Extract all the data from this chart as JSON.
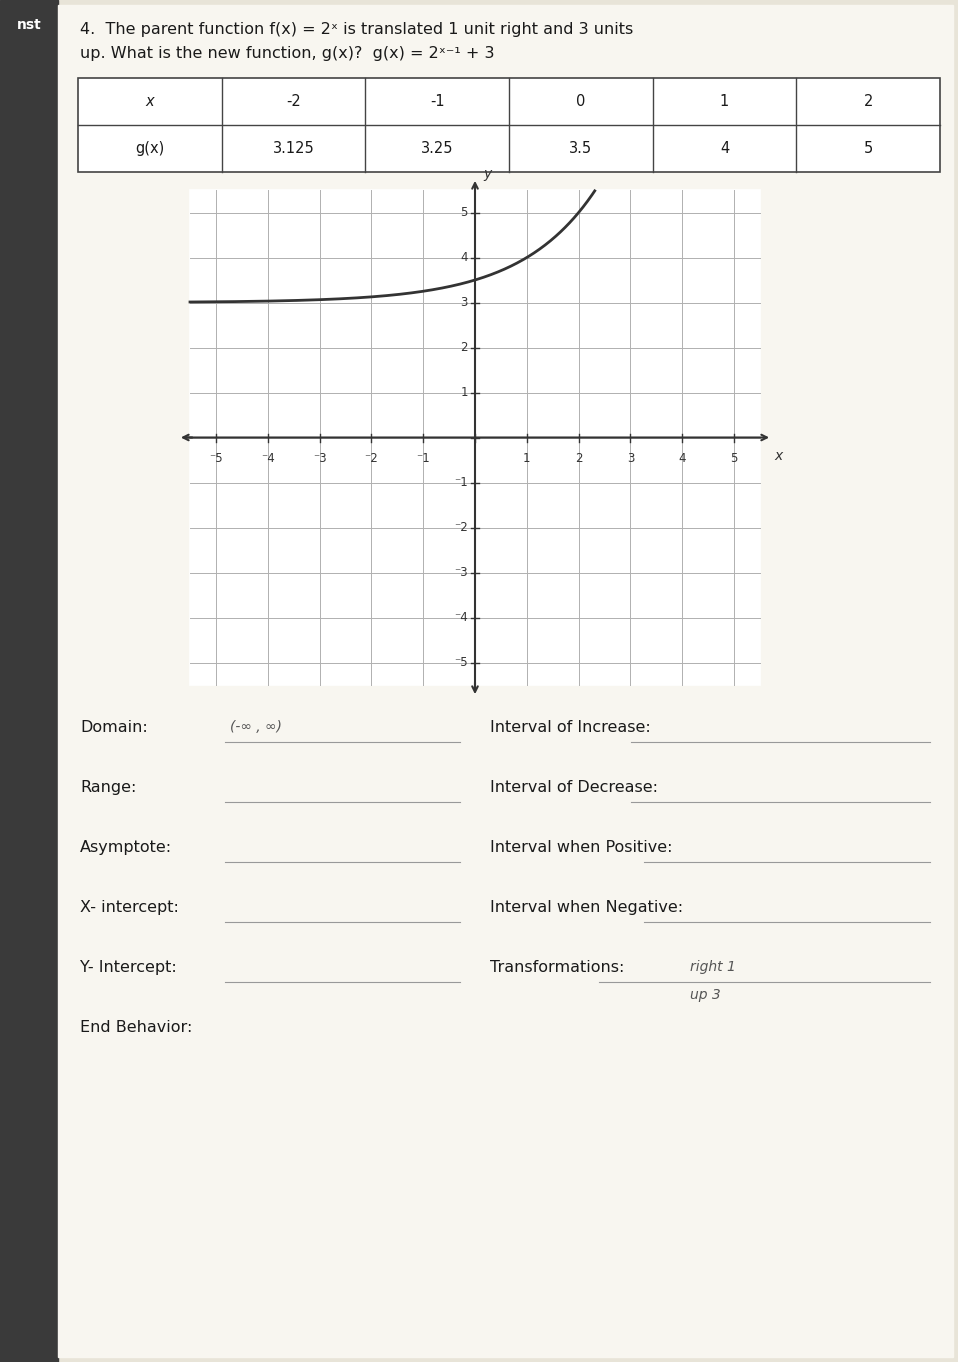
{
  "title_line1": "4.  The parent function f(x) = 2ˣ is translated 1 unit right and 3 units",
  "title_line2": "up. What is the new function, g(x)?  g(x) = 2ˣ⁻¹ + 3",
  "table_x_label": "x",
  "table_gx_label": "g(x)",
  "table_x_values": [
    "-2",
    "-1",
    "0",
    "1",
    "2"
  ],
  "table_gx_values": [
    "3.125",
    "3.25",
    "3.5",
    "4",
    "5"
  ],
  "graph_xlim": [
    -5.5,
    5.5
  ],
  "graph_ylim": [
    -5.5,
    5.5
  ],
  "graph_xticks": [
    -5,
    -4,
    -3,
    -2,
    -1,
    0,
    1,
    2,
    3,
    4,
    5
  ],
  "graph_yticks": [
    -5,
    -4,
    -3,
    -2,
    -1,
    0,
    1,
    2,
    3,
    4,
    5
  ],
  "left_labels": [
    "Domain:",
    "Range:",
    "Asymptote:",
    "X- intercept:",
    "Y- Intercept:",
    "End Behavior:"
  ],
  "right_labels": [
    "Interval of Increase:",
    "Interval of Decrease:",
    "Interval when Positive:",
    "Interval when Negative:",
    "Transformations:"
  ],
  "domain_answer": "(-∞ , ∞)",
  "trans_line1": "right 1",
  "trans_line2": "up 3",
  "bg_color": "#e8e4d8",
  "paper_color": "#f8f6f0",
  "dark_strip_color": "#3a3a3a",
  "text_color": "#1a1a1a",
  "grid_color": "#b0b0b0",
  "table_border_color": "#444444",
  "curve_color": "#333333",
  "title_fs": 11.5,
  "table_fs": 10.5,
  "label_fs": 11.5,
  "graph_tick_fs": 8.5
}
